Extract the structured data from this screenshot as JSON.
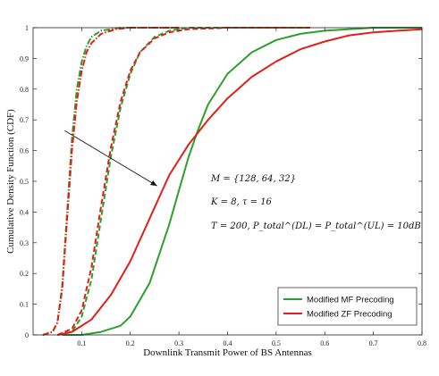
{
  "chart_data": {
    "type": "line",
    "xlabel": "Downlink Transmit Power of BS Antennas",
    "ylabel": "Cumulative Density Function (CDF)",
    "xlim": [
      0.0,
      0.8
    ],
    "ylim": [
      0,
      1
    ],
    "x_ticks": [
      "0.1",
      "0.2",
      "0.3",
      "0.4",
      "0.5",
      "0.6",
      "0.7",
      "0.8"
    ],
    "y_ticks": [
      "0",
      "0.1",
      "0.2",
      "0.3",
      "0.4",
      "0.5",
      "0.6",
      "0.7",
      "0.8",
      "0.9",
      "1"
    ],
    "grid": false,
    "legend_position": "bottom-right",
    "legend": [
      {
        "label": "Modified MF Precoding",
        "color": "#2ca02c"
      },
      {
        "label": "Modified ZF Precoding",
        "color": "#e0201b"
      }
    ],
    "annotations": [
      "M = {128, 64, 32}",
      "K = 8, τ = 16",
      "T = 200, P_total^(DL) = P_total^(UL) = 10dB"
    ],
    "arrow": {
      "from": [
        0.065,
        0.665
      ],
      "to": [
        0.255,
        0.485
      ]
    },
    "series": [
      {
        "group": "Modified MF Precoding",
        "color": "#2ca02c",
        "style": "dashdot",
        "points": [
          [
            0.02,
            0.0
          ],
          [
            0.04,
            0.01
          ],
          [
            0.05,
            0.04
          ],
          [
            0.06,
            0.16
          ],
          [
            0.07,
            0.4
          ],
          [
            0.08,
            0.64
          ],
          [
            0.09,
            0.8
          ],
          [
            0.1,
            0.89
          ],
          [
            0.11,
            0.94
          ],
          [
            0.12,
            0.97
          ],
          [
            0.14,
            0.99
          ],
          [
            0.18,
            1.0
          ],
          [
            0.3,
            1.0
          ]
        ]
      },
      {
        "group": "Modified ZF Precoding",
        "color": "#e0201b",
        "style": "dashdot",
        "points": [
          [
            0.02,
            0.0
          ],
          [
            0.04,
            0.01
          ],
          [
            0.05,
            0.04
          ],
          [
            0.06,
            0.15
          ],
          [
            0.07,
            0.38
          ],
          [
            0.08,
            0.6
          ],
          [
            0.09,
            0.76
          ],
          [
            0.1,
            0.86
          ],
          [
            0.11,
            0.92
          ],
          [
            0.12,
            0.95
          ],
          [
            0.14,
            0.98
          ],
          [
            0.17,
            0.995
          ],
          [
            0.2,
            1.0
          ],
          [
            0.3,
            1.0
          ]
        ]
      },
      {
        "group": "Modified MF Precoding",
        "color": "#2ca02c",
        "style": "dashed",
        "points": [
          [
            0.05,
            0.0
          ],
          [
            0.08,
            0.01
          ],
          [
            0.1,
            0.06
          ],
          [
            0.12,
            0.18
          ],
          [
            0.14,
            0.38
          ],
          [
            0.16,
            0.58
          ],
          [
            0.18,
            0.74
          ],
          [
            0.2,
            0.85
          ],
          [
            0.22,
            0.92
          ],
          [
            0.25,
            0.97
          ],
          [
            0.28,
            0.99
          ],
          [
            0.32,
            1.0
          ],
          [
            0.57,
            1.0
          ]
        ]
      },
      {
        "group": "Modified ZF Precoding",
        "color": "#e0201b",
        "style": "dashed",
        "points": [
          [
            0.05,
            0.0
          ],
          [
            0.08,
            0.02
          ],
          [
            0.1,
            0.08
          ],
          [
            0.12,
            0.22
          ],
          [
            0.14,
            0.42
          ],
          [
            0.16,
            0.61
          ],
          [
            0.18,
            0.76
          ],
          [
            0.2,
            0.86
          ],
          [
            0.22,
            0.92
          ],
          [
            0.25,
            0.965
          ],
          [
            0.28,
            0.985
          ],
          [
            0.32,
            0.995
          ],
          [
            0.4,
            1.0
          ],
          [
            0.57,
            1.0
          ]
        ]
      },
      {
        "group": "Modified MF Precoding",
        "color": "#2ca02c",
        "style": "solid",
        "points": [
          [
            0.06,
            0.0
          ],
          [
            0.1,
            0.0
          ],
          [
            0.14,
            0.01
          ],
          [
            0.18,
            0.03
          ],
          [
            0.2,
            0.06
          ],
          [
            0.24,
            0.17
          ],
          [
            0.28,
            0.36
          ],
          [
            0.3,
            0.47
          ],
          [
            0.32,
            0.58
          ],
          [
            0.34,
            0.67
          ],
          [
            0.36,
            0.75
          ],
          [
            0.4,
            0.85
          ],
          [
            0.45,
            0.92
          ],
          [
            0.5,
            0.96
          ],
          [
            0.55,
            0.98
          ],
          [
            0.6,
            0.99
          ],
          [
            0.7,
            1.0
          ],
          [
            0.8,
            1.0
          ]
        ]
      },
      {
        "group": "Modified ZF Precoding",
        "color": "#e0201b",
        "style": "solid",
        "points": [
          [
            0.05,
            0.0
          ],
          [
            0.08,
            0.01
          ],
          [
            0.12,
            0.05
          ],
          [
            0.16,
            0.13
          ],
          [
            0.2,
            0.24
          ],
          [
            0.24,
            0.38
          ],
          [
            0.28,
            0.52
          ],
          [
            0.32,
            0.62
          ],
          [
            0.36,
            0.7
          ],
          [
            0.4,
            0.77
          ],
          [
            0.45,
            0.84
          ],
          [
            0.5,
            0.89
          ],
          [
            0.55,
            0.93
          ],
          [
            0.6,
            0.955
          ],
          [
            0.65,
            0.975
          ],
          [
            0.7,
            0.985
          ],
          [
            0.75,
            0.99
          ],
          [
            0.8,
            0.995
          ]
        ]
      }
    ]
  }
}
